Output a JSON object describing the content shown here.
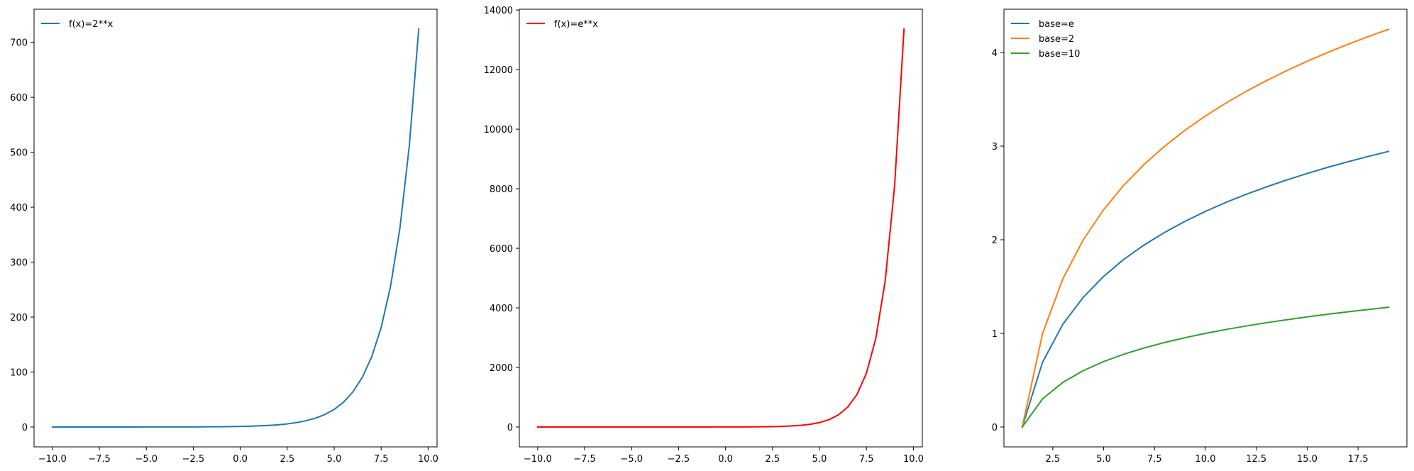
{
  "chart_data": [
    {
      "type": "line",
      "title": "",
      "xlabel": "",
      "ylabel": "",
      "xlim": [
        -10.975,
        10.475
      ],
      "ylim": [
        -36.2,
        760.2
      ],
      "xticks": [
        -10.0,
        -7.5,
        -5.0,
        -2.5,
        0.0,
        2.5,
        5.0,
        7.5,
        10.0
      ],
      "xtick_labels": [
        "−10.0",
        "−7.5",
        "−5.0",
        "−2.5",
        "0.0",
        "2.5",
        "5.0",
        "7.5",
        "10.0"
      ],
      "yticks": [
        0,
        100,
        200,
        300,
        400,
        500,
        600,
        700
      ],
      "ytick_labels": [
        "0",
        "100",
        "200",
        "300",
        "400",
        "500",
        "600",
        "700"
      ],
      "legend_position": "upper-left",
      "grid": false,
      "series": [
        {
          "name": "f(x)=2**x",
          "color": "#1f77b4",
          "x": [
            -10,
            -9.5,
            -9,
            -8.5,
            -8,
            -7.5,
            -7,
            -6.5,
            -6,
            -5.5,
            -5,
            -4.5,
            -4,
            -3.5,
            -3,
            -2.5,
            -2,
            -1.5,
            -1,
            -0.5,
            0,
            0.5,
            1,
            1.5,
            2,
            2.5,
            3,
            3.5,
            4,
            4.5,
            5,
            5.5,
            6,
            6.5,
            7,
            7.5,
            8,
            8.5,
            9,
            9.5
          ],
          "y": [
            0.001,
            0.001,
            0.002,
            0.003,
            0.004,
            0.006,
            0.008,
            0.011,
            0.016,
            0.022,
            0.031,
            0.044,
            0.063,
            0.088,
            0.125,
            0.177,
            0.25,
            0.354,
            0.5,
            0.707,
            1,
            1.414,
            2,
            2.828,
            4,
            5.657,
            8,
            11.31,
            16,
            22.63,
            32,
            45.25,
            64,
            90.51,
            128,
            181.0,
            256,
            362.0,
            512,
            724.1
          ]
        }
      ]
    },
    {
      "type": "line",
      "title": "",
      "xlabel": "",
      "ylabel": "",
      "xlim": [
        -10.975,
        10.475
      ],
      "ylim": [
        -668,
        14028
      ],
      "xticks": [
        -10.0,
        -7.5,
        -5.0,
        -2.5,
        0.0,
        2.5,
        5.0,
        7.5,
        10.0
      ],
      "xtick_labels": [
        "−10.0",
        "−7.5",
        "−5.0",
        "−2.5",
        "0.0",
        "2.5",
        "5.0",
        "7.5",
        "10.0"
      ],
      "yticks": [
        0,
        2000,
        4000,
        6000,
        8000,
        10000,
        12000,
        14000
      ],
      "ytick_labels": [
        "0",
        "2000",
        "4000",
        "6000",
        "8000",
        "10000",
        "12000",
        "14000"
      ],
      "legend_position": "upper-left",
      "grid": false,
      "series": [
        {
          "name": "f(x)=e**x",
          "color": "#ff0000",
          "x": [
            -10,
            -9.5,
            -9,
            -8.5,
            -8,
            -7.5,
            -7,
            -6.5,
            -6,
            -5.5,
            -5,
            -4.5,
            -4,
            -3.5,
            -3,
            -2.5,
            -2,
            -1.5,
            -1,
            -0.5,
            0,
            0.5,
            1,
            1.5,
            2,
            2.5,
            3,
            3.5,
            4,
            4.5,
            5,
            5.5,
            6,
            6.5,
            7,
            7.5,
            8,
            8.5,
            9,
            9.5
          ],
          "y": [
            0,
            0,
            0,
            0,
            0,
            0.001,
            0.001,
            0.002,
            0.002,
            0.004,
            0.007,
            0.011,
            0.018,
            0.03,
            0.05,
            0.082,
            0.135,
            0.223,
            0.368,
            0.607,
            1,
            1.649,
            2.718,
            4.482,
            7.389,
            12.18,
            20.09,
            33.12,
            54.6,
            90.02,
            148.4,
            244.7,
            403.4,
            665.1,
            1096.6,
            1808.0,
            2981.0,
            4914.8,
            8103.1,
            13359.7
          ]
        }
      ]
    },
    {
      "type": "line",
      "title": "",
      "xlabel": "",
      "ylabel": "",
      "xlim": [
        0.1,
        19.9
      ],
      "ylim": [
        -0.2125,
        4.4625
      ],
      "xticks": [
        2.5,
        5.0,
        7.5,
        10.0,
        12.5,
        15.0,
        17.5
      ],
      "xtick_labels": [
        "2.5",
        "5.0",
        "7.5",
        "10.0",
        "12.5",
        "15.0",
        "17.5"
      ],
      "yticks": [
        0,
        1,
        2,
        3,
        4
      ],
      "ytick_labels": [
        "0",
        "1",
        "2",
        "3",
        "4"
      ],
      "legend_position": "upper-left",
      "grid": false,
      "series": [
        {
          "name": "base=e",
          "color": "#1f77b4",
          "x": [
            1,
            2,
            3,
            4,
            5,
            6,
            7,
            8,
            9,
            10,
            11,
            12,
            13,
            14,
            15,
            16,
            17,
            18,
            19
          ],
          "y": [
            0,
            0.693,
            1.099,
            1.386,
            1.609,
            1.792,
            1.946,
            2.079,
            2.197,
            2.303,
            2.398,
            2.485,
            2.565,
            2.639,
            2.708,
            2.773,
            2.833,
            2.89,
            2.944
          ]
        },
        {
          "name": "base=2",
          "color": "#ff7f0e",
          "x": [
            1,
            2,
            3,
            4,
            5,
            6,
            7,
            8,
            9,
            10,
            11,
            12,
            13,
            14,
            15,
            16,
            17,
            18,
            19
          ],
          "y": [
            0,
            1,
            1.585,
            2,
            2.322,
            2.585,
            2.807,
            3,
            3.17,
            3.322,
            3.459,
            3.585,
            3.7,
            3.807,
            3.907,
            4,
            4.087,
            4.17,
            4.248
          ]
        },
        {
          "name": "base=10",
          "color": "#2ca02c",
          "x": [
            1,
            2,
            3,
            4,
            5,
            6,
            7,
            8,
            9,
            10,
            11,
            12,
            13,
            14,
            15,
            16,
            17,
            18,
            19
          ],
          "y": [
            0,
            0.301,
            0.477,
            0.602,
            0.699,
            0.778,
            0.845,
            0.903,
            0.954,
            1,
            1.041,
            1.079,
            1.114,
            1.146,
            1.176,
            1.204,
            1.23,
            1.255,
            1.279
          ]
        }
      ]
    }
  ]
}
